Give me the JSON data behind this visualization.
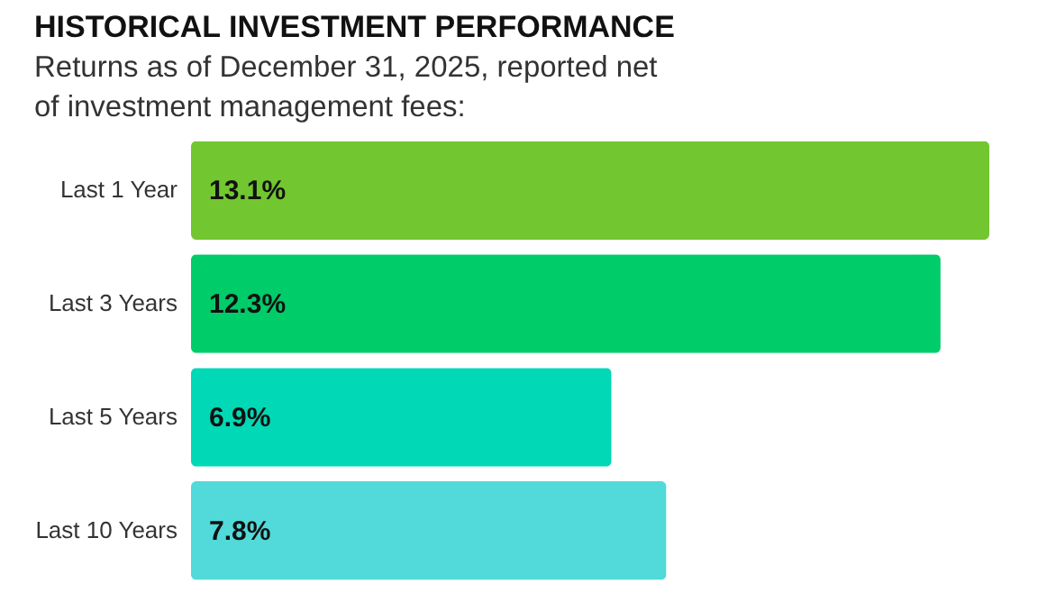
{
  "chart_data": {
    "type": "bar",
    "orientation": "horizontal",
    "title": "HISTORICAL INVESTMENT PERFORMANCE",
    "subtitle": "Returns as of December 31, 2025, reported net of investment management fees:",
    "categories": [
      "Last 1 Year",
      "Last 3 Years",
      "Last 5 Years",
      "Last 10 Years"
    ],
    "values": [
      13.1,
      12.3,
      6.9,
      7.8
    ],
    "colors": [
      "#72c62f",
      "#00cc6a",
      "#00d8b6",
      "#52d9d9"
    ],
    "value_labels": [
      "13.1%",
      "12.3%",
      "6.9%",
      "7.8%"
    ]
  }
}
